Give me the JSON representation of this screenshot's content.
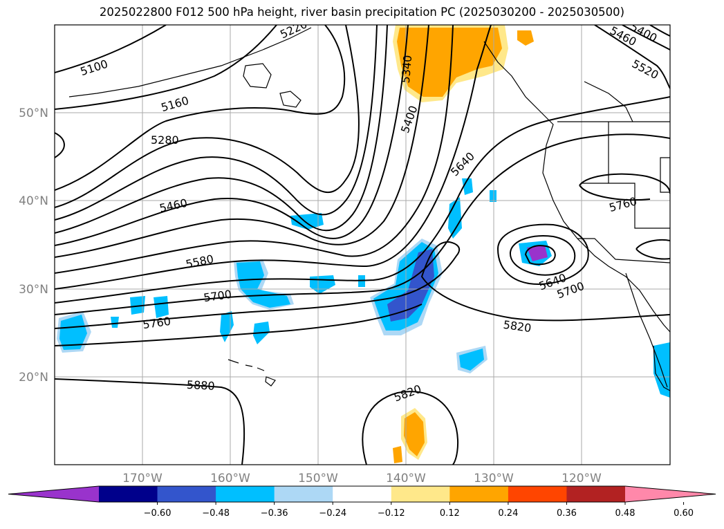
{
  "title": "2025022800 F012 500 hPa height, river basin precipitation PC (2025030200 - 2025030500)",
  "map": {
    "lat_labels": [
      {
        "text": "50°N",
        "lat": 50
      },
      {
        "text": "40°N",
        "lat": 40
      },
      {
        "text": "30°N",
        "lat": 30
      },
      {
        "text": "20°N",
        "lat": 20
      }
    ],
    "lon_labels": [
      {
        "text": "170°W",
        "lon": -170
      },
      {
        "text": "160°W",
        "lon": -160
      },
      {
        "text": "150°W",
        "lon": -150
      },
      {
        "text": "140°W",
        "lon": -140
      },
      {
        "text": "130°W",
        "lon": -130
      },
      {
        "text": "120°W",
        "lon": -120
      }
    ],
    "extent": {
      "lon_min": -180,
      "lon_max": -110,
      "lat_min": 10,
      "lat_max": 59.5
    },
    "contour_labels": [
      "5100",
      "5160",
      "5280",
      "5460",
      "5580",
      "5700",
      "5760",
      "5880",
      "5340",
      "5400",
      "5640",
      "5820",
      "5460",
      "5520",
      "5400",
      "5760",
      "5640",
      "5700",
      "5820",
      "5220"
    ]
  },
  "colorbar": {
    "colors": [
      "#9933cc",
      "#00008b",
      "#3355cc",
      "#00bfff",
      "#add8f5",
      "#ffffff",
      "#ffe88a",
      "#ffa500",
      "#ff4500",
      "#b22222",
      "#ff88aa"
    ],
    "labels": [
      "−0.60",
      "−0.48",
      "−0.36",
      "−0.24",
      "−0.12",
      "0.12",
      "0.24",
      "0.36",
      "0.48",
      "0.60"
    ]
  }
}
